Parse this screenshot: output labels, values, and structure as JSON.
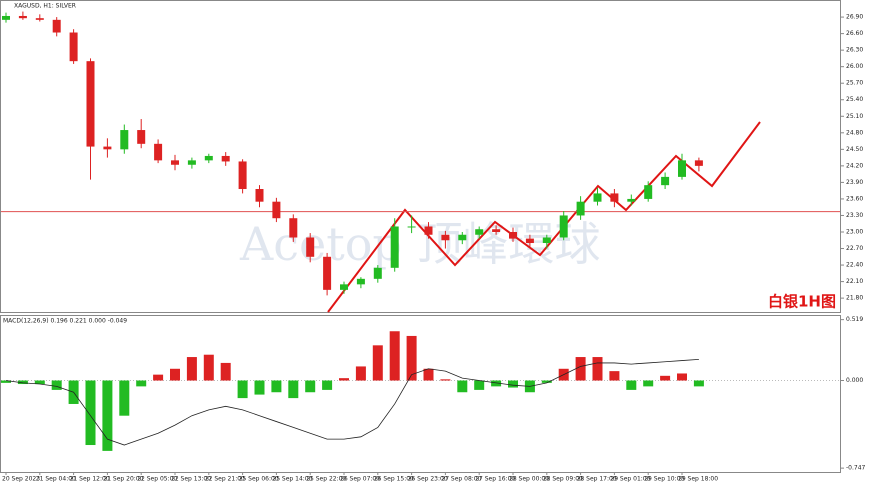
{
  "chart_data": {
    "type": "candlestick",
    "title": "XAGUSD, H1: SILVER",
    "annotation": "白银1H图",
    "watermark": "Acetop 顶峰環球",
    "categories": [
      "20 Sep 2023",
      null,
      "21 Sep 04:00",
      null,
      "21 Sep 12:00",
      null,
      "21 Sep 20:00",
      null,
      "22 Sep 05:00",
      null,
      "22 Sep 13:00",
      null,
      "22 Sep 21:00",
      null,
      "25 Sep 06:00",
      null,
      "25 Sep 14:00",
      null,
      "25 Sep 22:00",
      null,
      "26 Sep 07:00",
      null,
      "26 Sep 15:00",
      null,
      "26 Sep 23:00",
      null,
      "27 Sep 08:00",
      null,
      "27 Sep 16:00",
      null,
      "28 Sep 00:00",
      null,
      "28 Sep 09:00",
      null,
      "28 Sep 17:00",
      null,
      "29 Sep 01:00",
      null,
      "29 Sep 10:00",
      null,
      "29 Sep 18:00",
      null
    ],
    "open": [
      26.85,
      26.92,
      26.88,
      26.85,
      26.62,
      26.1,
      24.55,
      24.5,
      24.85,
      24.6,
      24.3,
      24.22,
      24.3,
      24.38,
      24.28,
      23.78,
      23.55,
      23.25,
      22.9,
      22.55,
      21.95,
      22.05,
      22.15,
      22.35,
      23.1,
      23.1,
      22.95,
      22.85,
      22.95,
      23.05,
      23.0,
      22.88,
      22.8,
      22.9,
      23.3,
      23.55,
      23.7,
      23.55,
      23.6,
      23.85,
      24.0,
      24.3
    ],
    "high": [
      26.98,
      27.0,
      26.95,
      26.9,
      26.68,
      26.15,
      24.7,
      24.95,
      25.05,
      24.68,
      24.4,
      24.35,
      24.42,
      24.45,
      24.32,
      23.85,
      23.62,
      23.32,
      22.98,
      22.62,
      22.1,
      22.18,
      22.4,
      23.25,
      23.3,
      23.18,
      23.02,
      23.0,
      23.1,
      23.12,
      23.08,
      22.95,
      22.95,
      23.38,
      23.65,
      23.8,
      23.78,
      23.68,
      23.92,
      24.08,
      24.42,
      24.35
    ],
    "low": [
      26.8,
      26.85,
      26.82,
      26.55,
      26.05,
      23.95,
      24.35,
      24.42,
      24.52,
      24.25,
      24.12,
      24.15,
      24.25,
      24.2,
      23.7,
      23.45,
      23.18,
      22.82,
      22.45,
      21.85,
      21.88,
      21.98,
      22.08,
      22.28,
      22.98,
      22.88,
      22.7,
      22.78,
      22.88,
      22.95,
      22.82,
      22.72,
      22.7,
      22.85,
      23.22,
      23.48,
      23.45,
      23.48,
      23.55,
      23.78,
      23.95,
      24.1
    ],
    "close": [
      26.92,
      26.88,
      26.85,
      26.62,
      26.1,
      24.55,
      24.5,
      24.85,
      24.6,
      24.3,
      24.22,
      24.3,
      24.38,
      24.28,
      23.78,
      23.55,
      23.25,
      22.9,
      22.55,
      21.95,
      22.05,
      22.15,
      22.35,
      23.1,
      23.1,
      22.95,
      22.85,
      22.95,
      23.05,
      23.0,
      22.88,
      22.8,
      22.9,
      23.3,
      23.55,
      23.7,
      23.55,
      23.6,
      23.85,
      24.0,
      24.3,
      24.2
    ],
    "up_color": "#22bb22",
    "down_color": "#dd2222",
    "hline": 23.37,
    "hline_color": "#e05050",
    "ylim": [
      21.53,
      27.21
    ],
    "yticks": [
      {
        "value": 26.9,
        "label": "26.90"
      },
      {
        "value": 26.6,
        "label": "26.60"
      },
      {
        "value": 26.3,
        "label": "26.30"
      },
      {
        "value": 26.0,
        "label": "26.00"
      },
      {
        "value": 25.7,
        "label": "25.70"
      },
      {
        "value": 25.4,
        "label": "25.40"
      },
      {
        "value": 25.1,
        "label": "25.10"
      },
      {
        "value": 24.8,
        "label": "24.80"
      },
      {
        "value": 24.5,
        "label": "24.50"
      },
      {
        "value": 24.2,
        "label": "24.20"
      },
      {
        "value": 23.9,
        "label": "23.90"
      },
      {
        "value": 23.6,
        "label": "23.60"
      },
      {
        "value": 23.3,
        "label": "23.30"
      },
      {
        "value": 23.0,
        "label": "23.00"
      },
      {
        "value": 22.7,
        "label": "22.70"
      },
      {
        "value": 22.4,
        "label": "22.40"
      },
      {
        "value": 22.1,
        "label": "22.10"
      },
      {
        "value": 21.8,
        "label": "21.80"
      }
    ],
    "macd": {
      "label": "MACD(12,26,9) 0.196 0.221 0.000 -0.049",
      "histogram": [
        -0.02,
        -0.03,
        -0.03,
        -0.08,
        -0.2,
        -0.55,
        -0.6,
        -0.3,
        -0.05,
        0.05,
        0.1,
        0.2,
        0.22,
        0.15,
        -0.15,
        -0.12,
        -0.1,
        -0.15,
        -0.1,
        -0.08,
        0.02,
        0.12,
        0.3,
        0.42,
        0.38,
        0.1,
        0.01,
        -0.1,
        -0.08,
        -0.05,
        -0.06,
        -0.1,
        -0.02,
        0.1,
        0.2,
        0.2,
        0.08,
        -0.08,
        -0.05,
        0.04,
        0.06,
        -0.05
      ],
      "line": [
        0,
        -0.02,
        -0.03,
        -0.05,
        -0.1,
        -0.3,
        -0.5,
        -0.55,
        -0.5,
        -0.45,
        -0.38,
        -0.3,
        -0.25,
        -0.22,
        -0.25,
        -0.3,
        -0.35,
        -0.4,
        -0.45,
        -0.5,
        -0.5,
        -0.48,
        -0.4,
        -0.2,
        0.05,
        0.1,
        0.08,
        0.02,
        0,
        -0.02,
        -0.04,
        -0.05,
        -0.02,
        0.05,
        0.12,
        0.15,
        0.15,
        0.14,
        0.15,
        0.16,
        0.17,
        0.18
      ],
      "line_color": "#222222",
      "y2lim": [
        -0.78,
        0.55
      ],
      "y2ticks": [
        0.519,
        {
          "value": 0,
          "label": "0.000"
        },
        -0.747
      ]
    }
  }
}
